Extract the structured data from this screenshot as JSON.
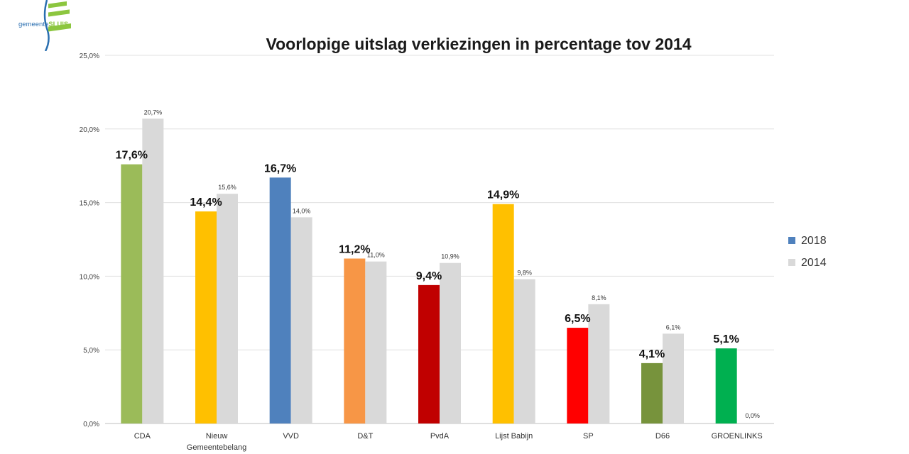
{
  "logo": {
    "text_prefix": "gemeente",
    "text_suffix": "SLUIS"
  },
  "chart_data": {
    "type": "bar",
    "title": "Voorlopige uitslag verkiezingen in percentage tov 2014",
    "xlabel": "",
    "ylabel": "",
    "ylim": [
      0,
      25
    ],
    "yticks": [
      "0,0%",
      "5,0%",
      "10,0%",
      "15,0%",
      "20,0%",
      "25,0%"
    ],
    "ytick_values": [
      0,
      5,
      10,
      15,
      20,
      25
    ],
    "grid": true,
    "legend_position": "right",
    "categories": [
      [
        "CDA"
      ],
      [
        "Nieuw",
        "Gemeentebelang"
      ],
      [
        "VVD"
      ],
      [
        "D&T"
      ],
      [
        "PvdA"
      ],
      [
        "Lijst Babijn"
      ],
      [
        "SP"
      ],
      [
        "D66"
      ],
      [
        "GROENLINKS"
      ]
    ],
    "series": [
      {
        "name": "2018",
        "legend_color": "#4f81bd",
        "values": [
          17.6,
          14.4,
          16.7,
          11.2,
          9.4,
          14.9,
          6.5,
          4.1,
          5.1
        ],
        "labels": [
          "17,6%",
          "14,4%",
          "16,7%",
          "11,2%",
          "9,4%",
          "14,9%",
          "6,5%",
          "4,1%",
          "5,1%"
        ],
        "colors": [
          "#9bbb59",
          "#ffc000",
          "#4f81bd",
          "#f79646",
          "#c00000",
          "#ffc000",
          "#ff0000",
          "#77933c",
          "#00b050"
        ]
      },
      {
        "name": "2014",
        "legend_color": "#d9d9d9",
        "values": [
          20.7,
          15.6,
          14.0,
          11.0,
          10.9,
          9.8,
          8.1,
          6.1,
          0.0
        ],
        "labels": [
          "20,7%",
          "15,6%",
          "14,0%",
          "11,0%",
          "10,9%",
          "9,8%",
          "8,1%",
          "6,1%",
          "0,0%"
        ],
        "colors": [
          "#d9d9d9",
          "#d9d9d9",
          "#d9d9d9",
          "#d9d9d9",
          "#d9d9d9",
          "#d9d9d9",
          "#d9d9d9",
          "#d9d9d9",
          "#d9d9d9"
        ]
      }
    ]
  }
}
